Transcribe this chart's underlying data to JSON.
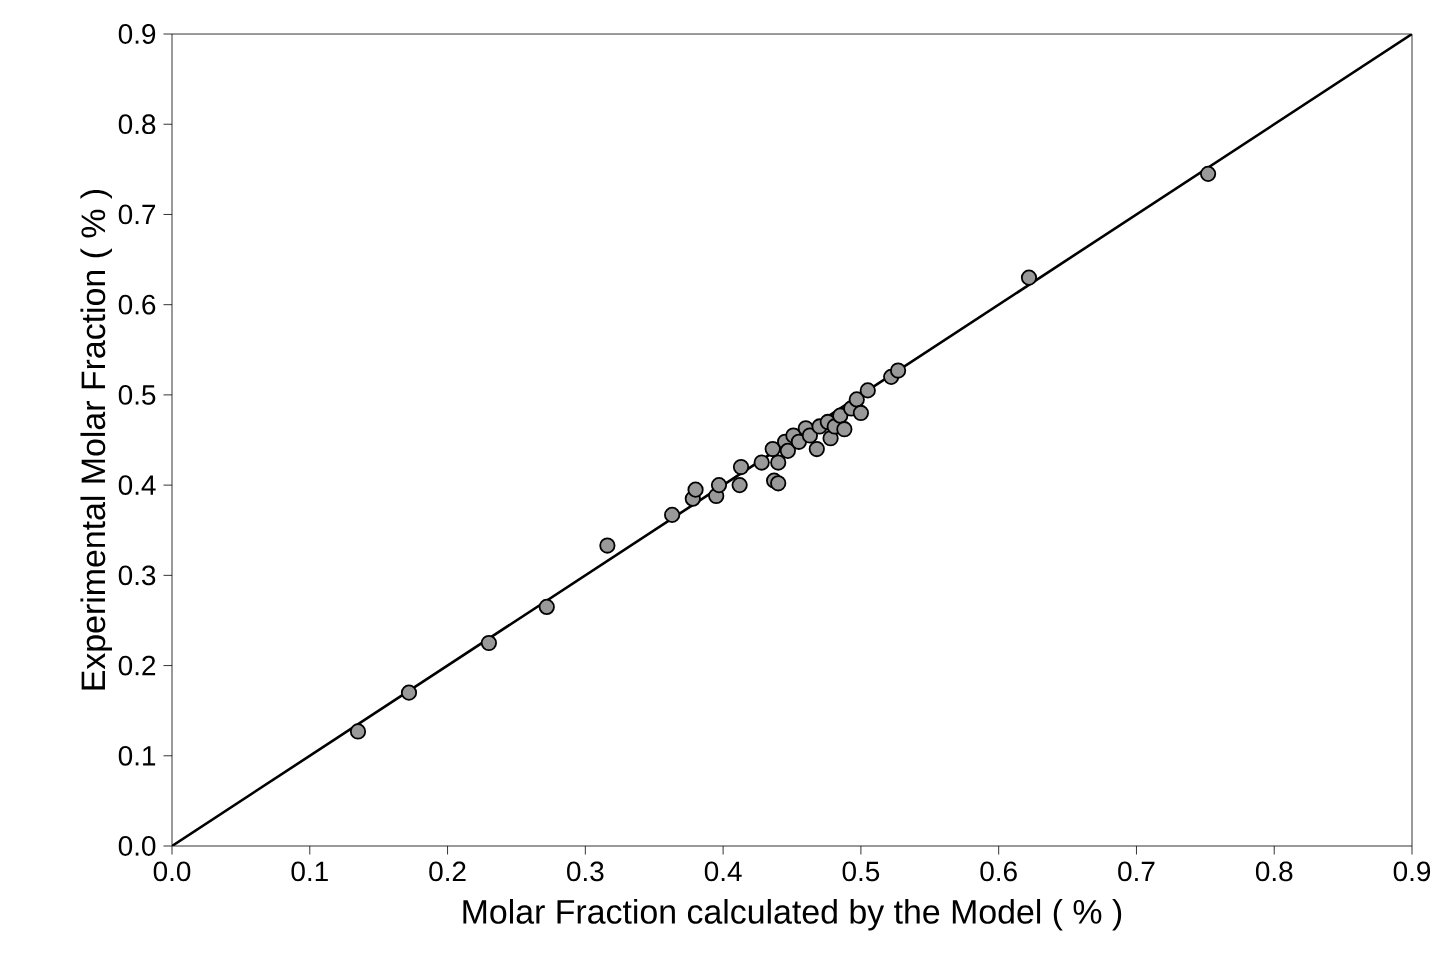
{
  "chart_data": {
    "type": "scatter",
    "xlabel": "Molar Fraction calculated by the Model ( % )",
    "ylabel": "Experimental Molar Fraction ( % )",
    "xlim": [
      0,
      0.9
    ],
    "ylim": [
      0,
      0.9
    ],
    "xticks": [
      {
        "value": 0,
        "label": "0.0"
      },
      0.1,
      0.2,
      0.3,
      0.4,
      0.5,
      0.6,
      0.7,
      0.8,
      0.9
    ],
    "yticks": [
      {
        "value": 0,
        "label": "0.0"
      },
      0.1,
      0.2,
      0.3,
      0.4,
      0.5,
      0.6,
      0.7,
      0.8,
      0.9
    ],
    "grid": false,
    "legend": false,
    "marker": "circle",
    "series": [
      {
        "type": "scatter",
        "color": "#999999",
        "x": [
          0.135,
          0.172,
          0.23,
          0.272,
          0.316,
          0.363,
          0.378,
          0.38,
          0.395,
          0.397,
          0.413,
          0.412,
          0.428,
          0.437,
          0.44,
          0.436,
          0.44,
          0.445,
          0.447,
          0.451,
          0.455,
          0.46,
          0.463,
          0.468,
          0.47,
          0.476,
          0.478,
          0.481,
          0.485,
          0.488,
          0.493,
          0.497,
          0.5,
          0.505,
          0.522,
          0.527,
          0.622,
          0.752
        ],
        "values": [
          0.127,
          0.17,
          0.225,
          0.265,
          0.333,
          0.367,
          0.385,
          0.395,
          0.388,
          0.4,
          0.42,
          0.4,
          0.425,
          0.405,
          0.402,
          0.44,
          0.425,
          0.448,
          0.438,
          0.455,
          0.448,
          0.463,
          0.455,
          0.44,
          0.465,
          0.47,
          0.452,
          0.465,
          0.477,
          0.462,
          0.485,
          0.495,
          0.48,
          0.505,
          0.52,
          0.527,
          0.63,
          0.745
        ]
      },
      {
        "type": "line",
        "color": "#000000",
        "x": [
          0,
          0.9
        ],
        "values": [
          0,
          0.9
        ],
        "marker": "none",
        "line_style": "solid"
      }
    ]
  }
}
